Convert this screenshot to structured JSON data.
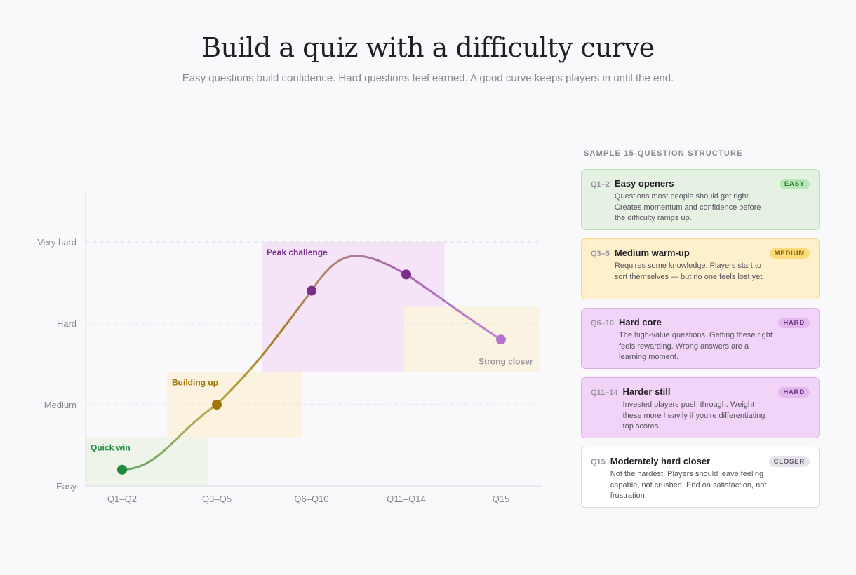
{
  "header": {
    "title": "Build a quiz with a difficulty curve",
    "subtitle": "Easy questions build confidence. Hard questions feel earned. A good curve keeps players in until the end."
  },
  "chart_data": {
    "type": "line",
    "categories": [
      "Q1–Q2",
      "Q3–Q5",
      "Q6–Q10",
      "Q11–Q14",
      "Q15"
    ],
    "y_levels": [
      "Easy",
      "Medium",
      "Hard",
      "Very hard"
    ],
    "ylim": [
      0,
      3
    ],
    "points": [
      {
        "category": "Q1–Q2",
        "value": 0.2,
        "color": "#1e8a3c"
      },
      {
        "category": "Q3–Q5",
        "value": 1.0,
        "color": "#a07400"
      },
      {
        "category": "Q6–Q10",
        "value": 2.4,
        "color": "#7a2e88"
      },
      {
        "category": "Q11–Q14",
        "value": 2.6,
        "color": "#7a2e88"
      },
      {
        "category": "Q15",
        "value": 1.8,
        "color": "#b673d0"
      }
    ],
    "zones": [
      {
        "label": "Quick win",
        "color": "#1e8a3c",
        "fill": "#eef4ea",
        "x_from": 0,
        "x_to": 1,
        "y_from": 0,
        "y_to": 0.6
      },
      {
        "label": "Building up",
        "color": "#a07400",
        "fill": "#fbf2df",
        "x_from": 1,
        "x_to": 2,
        "y_from": 0.6,
        "y_to": 1.4
      },
      {
        "label": "Peak challenge",
        "color": "#7a2e88",
        "fill": "#f5e3f8",
        "x_from": 2,
        "x_to": 3.5,
        "y_from": 1.4,
        "y_to": 3.0
      },
      {
        "label": "Strong closer",
        "color": "#9a94a0",
        "fill": "#fbf3e2",
        "x_from": 3.5,
        "x_to": 4.5,
        "y_from": 1.4,
        "y_to": 2.2
      }
    ],
    "grid": true
  },
  "sidebar": {
    "heading": "SAMPLE 15-QUESTION STRUCTURE",
    "cards": [
      {
        "range": "Q1–2",
        "name": "Easy openers",
        "badge": "EASY",
        "desc": "Questions most people should get right. Creates momentum and confidence before the difficulty ramps up."
      },
      {
        "range": "Q3–5",
        "name": "Medium warm-up",
        "badge": "MEDIUM",
        "desc": "Requires some knowledge. Players start to sort themselves — but no one feels lost yet."
      },
      {
        "range": "Q6–10",
        "name": "Hard core",
        "badge": "HARD",
        "desc": "The high-value questions. Getting these right feels rewarding. Wrong answers are a learning moment."
      },
      {
        "range": "Q11–14",
        "name": "Harder still",
        "badge": "HARD",
        "desc": "Invested players push through. Weight these more heavily if you’re differentiating top scores."
      },
      {
        "range": "Q15",
        "name": "Moderately hard closer",
        "badge": "CLOSER",
        "desc": "Not the hardest. Players should leave feeling capable, not crushed. End on satisfaction, not frustration."
      }
    ]
  }
}
